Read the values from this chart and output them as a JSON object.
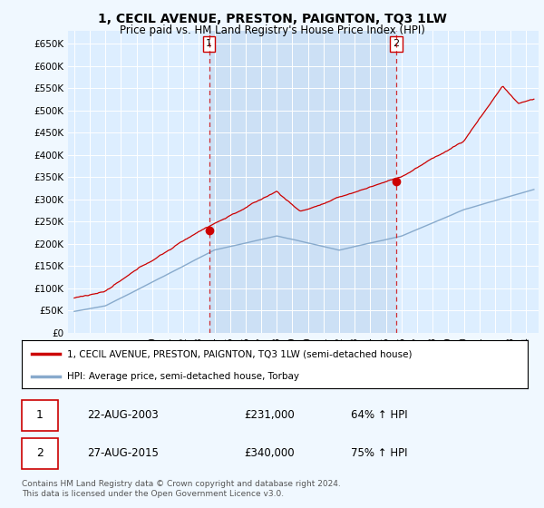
{
  "title": "1, CECIL AVENUE, PRESTON, PAIGNTON, TQ3 1LW",
  "subtitle": "Price paid vs. HM Land Registry's House Price Index (HPI)",
  "ylabel_ticks": [
    "£0",
    "£50K",
    "£100K",
    "£150K",
    "£200K",
    "£250K",
    "£300K",
    "£350K",
    "£400K",
    "£450K",
    "£500K",
    "£550K",
    "£600K",
    "£650K"
  ],
  "ytick_values": [
    0,
    50000,
    100000,
    150000,
    200000,
    250000,
    300000,
    350000,
    400000,
    450000,
    500000,
    550000,
    600000,
    650000
  ],
  "ylim": [
    0,
    680000
  ],
  "xlim_left": 1994.6,
  "xlim_right": 2024.8,
  "background_color": "#f0f8ff",
  "plot_bg": "#ddeeff",
  "shade_color": "#cce0f5",
  "legend_label_red": "1, CECIL AVENUE, PRESTON, PAIGNTON, TQ3 1LW (semi-detached house)",
  "legend_label_blue": "HPI: Average price, semi-detached house, Torbay",
  "transaction1_date": "22-AUG-2003",
  "transaction1_price": "£231,000",
  "transaction1_info": "64% ↑ HPI",
  "transaction2_date": "27-AUG-2015",
  "transaction2_price": "£340,000",
  "transaction2_info": "75% ↑ HPI",
  "footer": "Contains HM Land Registry data © Crown copyright and database right 2024.\nThis data is licensed under the Open Government Licence v3.0.",
  "red_color": "#cc0000",
  "blue_color": "#88aacc",
  "marker1_x": 2003.65,
  "marker1_y": 231000,
  "marker2_x": 2015.65,
  "marker2_y": 340000,
  "vline1_x": 2003.65,
  "vline2_x": 2015.65
}
